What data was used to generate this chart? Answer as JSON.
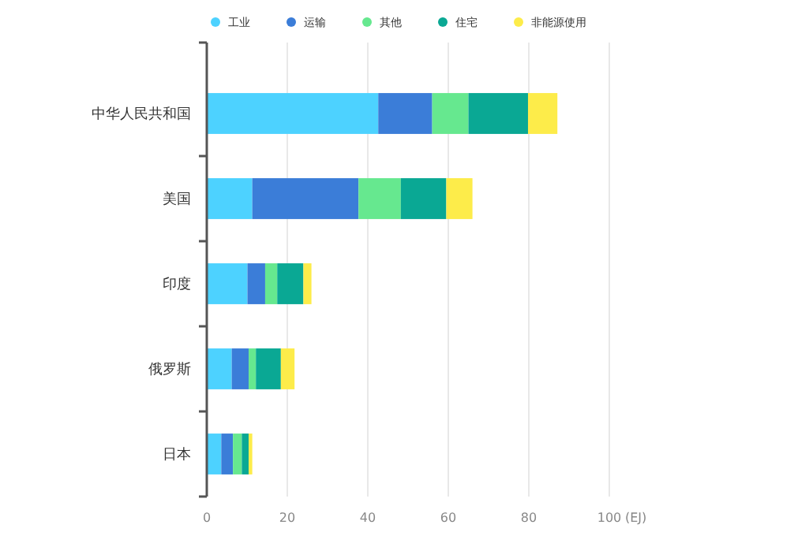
{
  "chart_data": {
    "type": "bar",
    "orientation": "horizontal",
    "stacked": true,
    "xlabel": "(EJ)",
    "categories": [
      "中华人民共和国",
      "美国",
      "印度",
      "俄罗斯",
      "日本"
    ],
    "series": [
      {
        "name": "工业",
        "color": "#4dd2ff",
        "values": [
          42.6,
          11.3,
          10.1,
          6.2,
          3.6
        ]
      },
      {
        "name": "运输",
        "color": "#3b7dd8",
        "values": [
          13.4,
          26.4,
          4.4,
          4.2,
          2.9
        ]
      },
      {
        "name": "其他",
        "color": "#66e88f",
        "values": [
          9.0,
          10.5,
          3.0,
          1.8,
          2.2
        ]
      },
      {
        "name": "住宅",
        "color": "#0aa894",
        "values": [
          14.8,
          11.3,
          6.5,
          6.2,
          1.7
        ]
      },
      {
        "name": "非能源使用",
        "color": "#fdec4a",
        "values": [
          7.3,
          6.5,
          2.0,
          3.4,
          0.9
        ]
      }
    ],
    "xlim": [
      0,
      100
    ],
    "xticks": [
      0,
      20,
      40,
      60,
      80,
      100
    ],
    "grid": "x",
    "legend": "top"
  }
}
